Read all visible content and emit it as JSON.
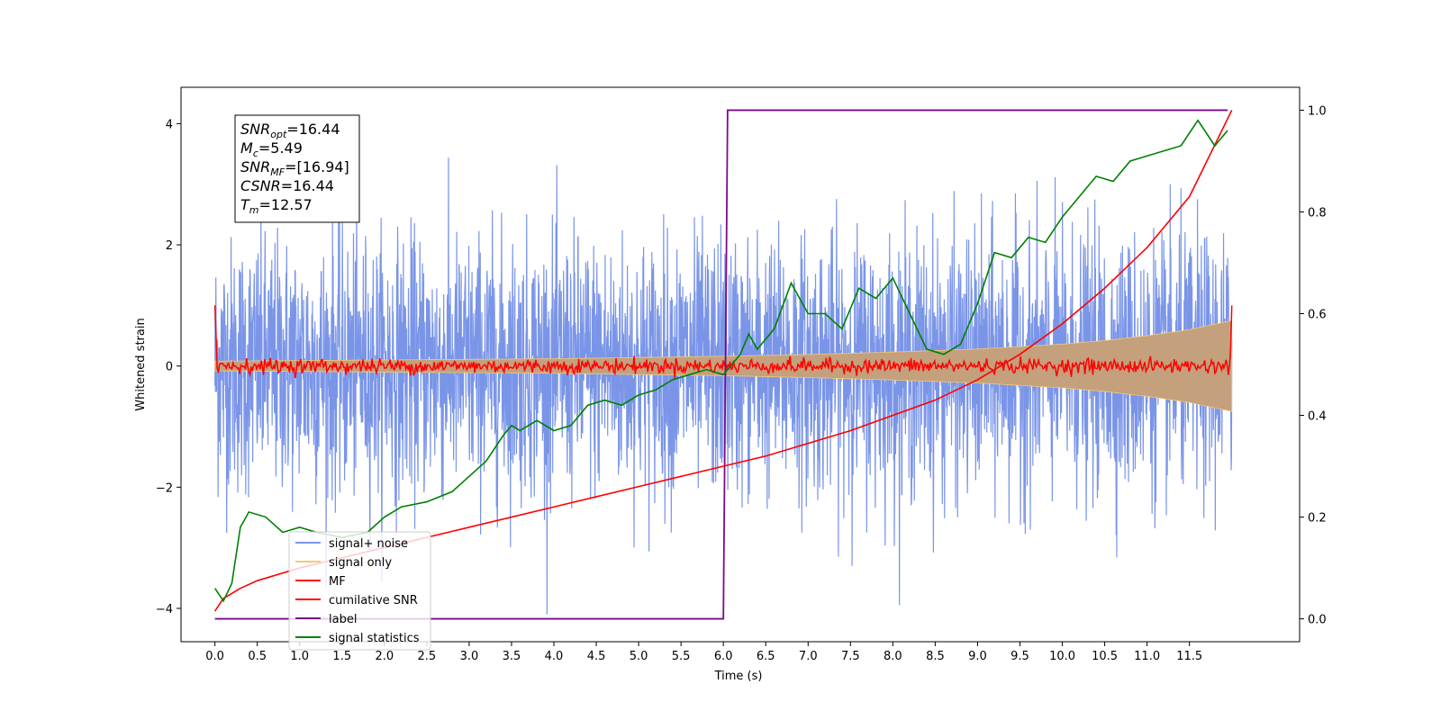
{
  "chart_data": {
    "type": "line",
    "xlabel": "Time (s)",
    "ylabel": "Whitened strain",
    "xlim": [
      -0.4,
      12.8
    ],
    "ylim": [
      -4.55,
      4.6
    ],
    "y2lim": [
      -0.045,
      1.045
    ],
    "x_ticks": [
      0.0,
      0.5,
      1.0,
      1.5,
      2.0,
      2.5,
      3.0,
      3.5,
      4.0,
      4.5,
      5.0,
      5.5,
      6.0,
      6.5,
      7.0,
      7.5,
      8.0,
      8.5,
      9.0,
      9.5,
      10.0,
      10.5,
      11.0,
      11.5
    ],
    "x_tick_labels": [
      "0.0",
      "0.5",
      "1.0",
      "1.5",
      "2.0",
      "2.5",
      "3.0",
      "3.5",
      "4.0",
      "4.5",
      "5.0",
      "5.5",
      "6.0",
      "6.5",
      "7.0",
      "7.5",
      "8.0",
      "8.5",
      "9.0",
      "9.5",
      "10.0",
      "10.5",
      "11.0",
      "11.5"
    ],
    "y_ticks": [
      -4,
      -2,
      0,
      2,
      4
    ],
    "y_tick_labels": [
      "−4",
      "−2",
      "0",
      "2",
      "4"
    ],
    "y2_ticks": [
      0.0,
      0.2,
      0.4,
      0.6,
      0.8,
      1.0
    ],
    "y2_tick_labels": [
      "0.0",
      "0.2",
      "0.4",
      "0.6",
      "0.8",
      "1.0"
    ],
    "grid": false,
    "legend_position": "lower-left",
    "info_box": {
      "lines": [
        {
          "symbol": "SNR",
          "sub": "opt",
          "value": "=16.44"
        },
        {
          "symbol": "M",
          "sub": "c",
          "value": "=5.49"
        },
        {
          "symbol": "SNR",
          "sub": "MF",
          "value": "=[16.94]"
        },
        {
          "symbol": "CSNR",
          "sub": "",
          "value": "=16.44"
        },
        {
          "symbol": "T",
          "sub": "m",
          "value": "=12.57"
        }
      ]
    },
    "series": [
      {
        "name": "signal+ noise",
        "color": "#7a95e8",
        "axis": "left",
        "style": "dense-noise",
        "x_range": [
          0.0,
          12.0
        ],
        "envelope": {
          "x": [
            0,
            1,
            2,
            3,
            4,
            5,
            6,
            7,
            8,
            9,
            10,
            11,
            12
          ],
          "core_half_width": [
            1.3,
            1.3,
            1.3,
            1.3,
            1.3,
            1.3,
            1.3,
            1.3,
            1.3,
            1.3,
            1.3,
            1.3,
            1.3
          ],
          "peak_max": 4.15,
          "peak_min": -4.1
        }
      },
      {
        "name": "signal only",
        "color": "#f5c878",
        "axis": "left",
        "style": "chirp-envelope",
        "x": [
          0.0,
          1.0,
          2.0,
          3.0,
          4.0,
          5.0,
          6.0,
          7.0,
          8.0,
          9.0,
          10.0,
          10.5,
          11.0,
          11.5,
          12.0
        ],
        "amplitude": [
          0.08,
          0.09,
          0.1,
          0.11,
          0.12,
          0.14,
          0.16,
          0.19,
          0.23,
          0.28,
          0.36,
          0.42,
          0.5,
          0.6,
          0.75
        ]
      },
      {
        "name": "MF",
        "color": "#ff0000",
        "axis": "left",
        "style": "jitter",
        "x_range": [
          0.0,
          12.0
        ],
        "level": 0.0,
        "jitter": 0.06,
        "start_value": 1.0,
        "end_value": 1.0
      },
      {
        "name": "cumilative SNR",
        "color": "#ff0000",
        "axis": "right",
        "x": [
          0.0,
          0.1,
          0.3,
          0.5,
          1.0,
          1.5,
          2.0,
          2.5,
          3.0,
          3.5,
          4.0,
          4.5,
          5.0,
          5.5,
          6.0,
          6.5,
          7.0,
          7.5,
          8.0,
          8.5,
          9.0,
          9.5,
          10.0,
          10.5,
          11.0,
          11.5,
          12.0
        ],
        "y": [
          0.015,
          0.04,
          0.06,
          0.075,
          0.1,
          0.12,
          0.14,
          0.16,
          0.18,
          0.2,
          0.22,
          0.24,
          0.26,
          0.28,
          0.3,
          0.32,
          0.345,
          0.37,
          0.4,
          0.43,
          0.47,
          0.52,
          0.58,
          0.65,
          0.73,
          0.83,
          1.0
        ]
      },
      {
        "name": "label",
        "color": "#7b0a8a",
        "axis": "right",
        "x": [
          0.0,
          6.0,
          6.05,
          11.95
        ],
        "y": [
          0.0,
          0.0,
          1.0,
          1.0
        ]
      },
      {
        "name": "signal statistics",
        "color": "#008000",
        "axis": "right",
        "x": [
          0.0,
          0.1,
          0.2,
          0.3,
          0.4,
          0.6,
          0.8,
          1.0,
          1.2,
          1.5,
          1.8,
          2.0,
          2.2,
          2.5,
          2.8,
          3.0,
          3.2,
          3.4,
          3.5,
          3.6,
          3.8,
          4.0,
          4.2,
          4.4,
          4.6,
          4.8,
          5.0,
          5.2,
          5.4,
          5.6,
          5.8,
          6.0,
          6.2,
          6.3,
          6.4,
          6.6,
          6.8,
          7.0,
          7.2,
          7.4,
          7.6,
          7.8,
          8.0,
          8.2,
          8.4,
          8.6,
          8.8,
          9.0,
          9.2,
          9.4,
          9.6,
          9.8,
          10.0,
          10.2,
          10.4,
          10.6,
          10.8,
          11.0,
          11.2,
          11.4,
          11.6,
          11.8,
          11.95
        ],
        "y": [
          0.06,
          0.035,
          0.07,
          0.18,
          0.21,
          0.2,
          0.17,
          0.18,
          0.17,
          0.16,
          0.17,
          0.2,
          0.22,
          0.23,
          0.25,
          0.28,
          0.31,
          0.36,
          0.38,
          0.37,
          0.39,
          0.37,
          0.38,
          0.42,
          0.43,
          0.42,
          0.44,
          0.45,
          0.47,
          0.48,
          0.49,
          0.48,
          0.52,
          0.56,
          0.53,
          0.57,
          0.66,
          0.6,
          0.6,
          0.57,
          0.65,
          0.63,
          0.67,
          0.6,
          0.53,
          0.52,
          0.54,
          0.62,
          0.72,
          0.71,
          0.75,
          0.74,
          0.79,
          0.83,
          0.87,
          0.86,
          0.9,
          0.91,
          0.92,
          0.93,
          0.98,
          0.93,
          0.96
        ]
      }
    ]
  }
}
